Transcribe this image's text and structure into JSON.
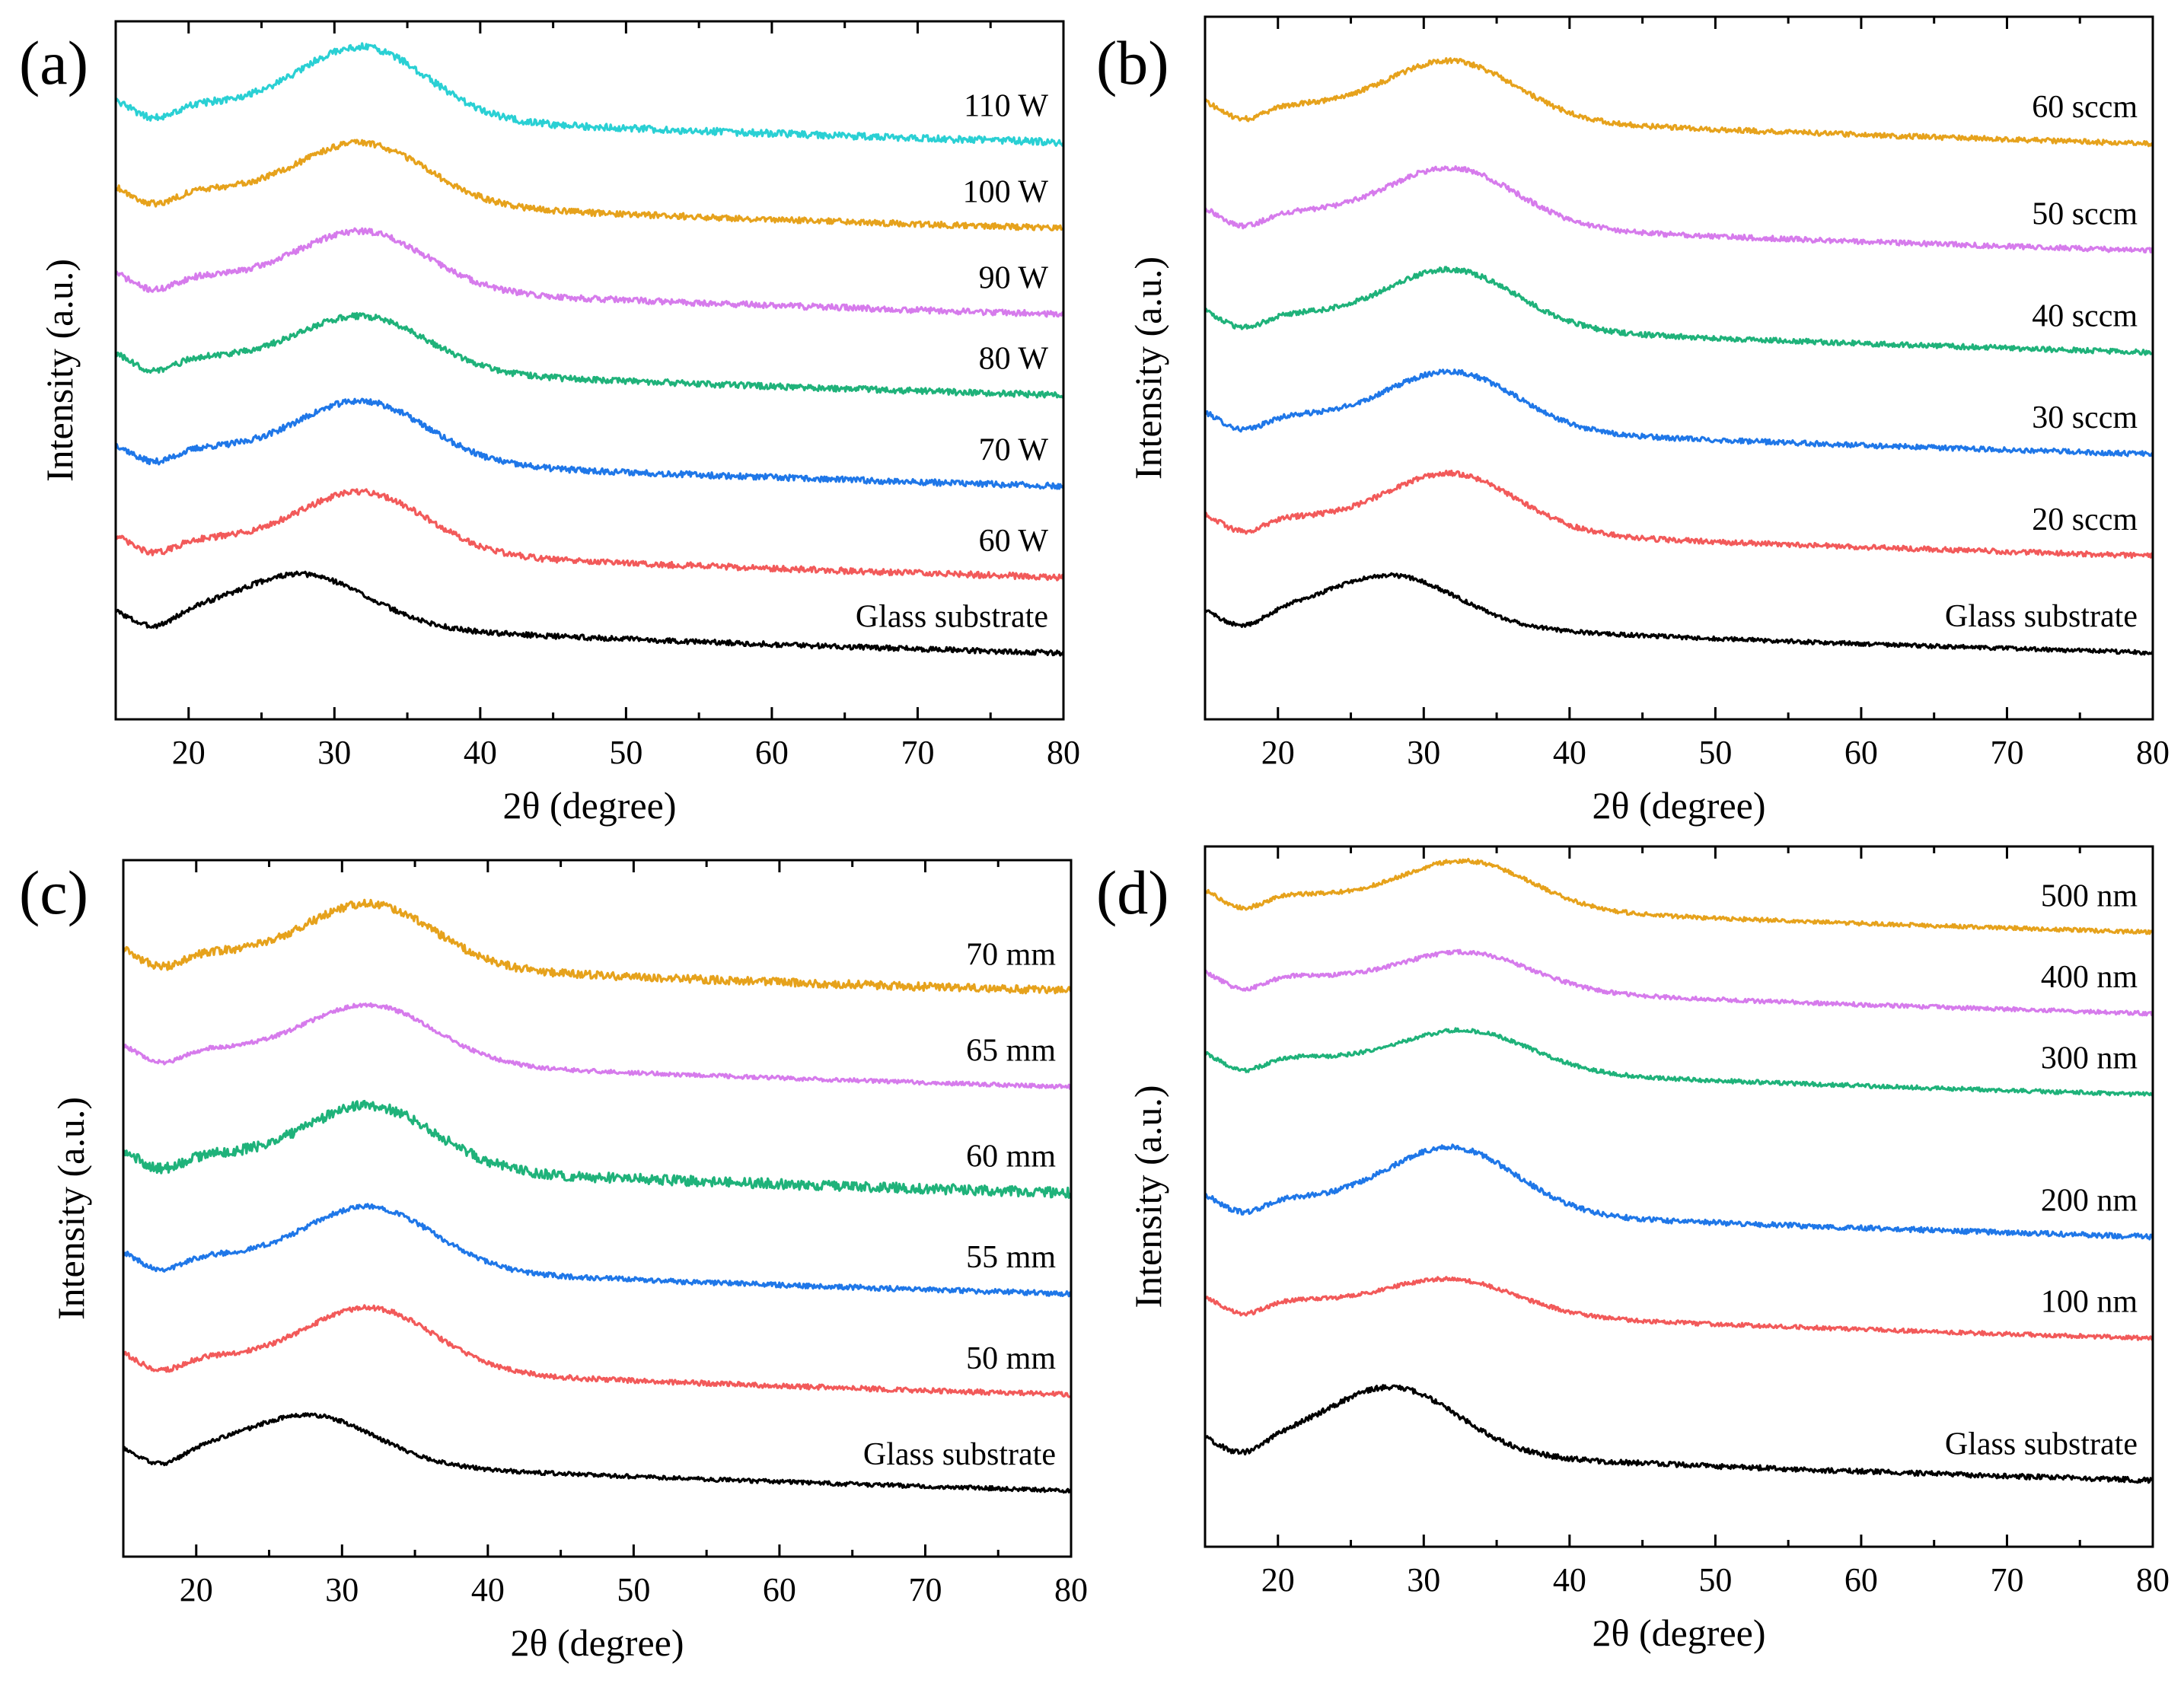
{
  "colors": {
    "black": "#000000",
    "red": "#f25a5a",
    "blue": "#1f77e8",
    "green": "#1fb27a",
    "violet": "#d67bec",
    "orange": "#e6a21c",
    "cyan": "#2ad0d4"
  },
  "chart_data": [
    {
      "type": "line",
      "panel_label": "(a)",
      "xlabel": "2θ (degree)",
      "ylabel": "Intensity (a.u.)",
      "xlim": [
        15,
        80
      ],
      "xticks": [
        20,
        30,
        40,
        50,
        60,
        70,
        80
      ],
      "yticks_shown": false,
      "series": [
        {
          "name": "Glass substrate",
          "color": "black",
          "base": 1.1,
          "peak_x": 28,
          "peak_h": 0.48,
          "noise": 0.025
        },
        {
          "name": "60 W",
          "color": "red",
          "base": 1.85,
          "peak_x": 32,
          "peak_h": 0.58,
          "noise": 0.03
        },
        {
          "name": "70 W",
          "color": "blue",
          "base": 2.75,
          "peak_x": 32,
          "peak_h": 0.58,
          "noise": 0.03
        },
        {
          "name": "80 W",
          "color": "green",
          "base": 3.65,
          "peak_x": 32,
          "peak_h": 0.52,
          "noise": 0.03
        },
        {
          "name": "90 W",
          "color": "violet",
          "base": 4.45,
          "peak_x": 32,
          "peak_h": 0.56,
          "noise": 0.03
        },
        {
          "name": "100 W",
          "color": "orange",
          "base": 5.3,
          "peak_x": 32,
          "peak_h": 0.58,
          "noise": 0.03
        },
        {
          "name": "110 W",
          "color": "cyan",
          "base": 6.15,
          "peak_x": 32,
          "peak_h": 0.68,
          "noise": 0.035
        }
      ]
    },
    {
      "type": "line",
      "panel_label": "(b)",
      "xlabel": "2θ (degree)",
      "ylabel": "Intensity (a.u.)",
      "xlim": [
        15,
        80
      ],
      "xticks": [
        20,
        30,
        40,
        50,
        60,
        70,
        80
      ],
      "yticks_shown": false,
      "series": [
        {
          "name": "Glass substrate",
          "color": "black",
          "base": 1.1,
          "peak_x": 28,
          "peak_h": 0.46,
          "noise": 0.02
        },
        {
          "name": "20 sccm",
          "color": "red",
          "base": 2.05,
          "peak_x": 32,
          "peak_h": 0.55,
          "noise": 0.025
        },
        {
          "name": "30 sccm",
          "color": "blue",
          "base": 3.05,
          "peak_x": 32,
          "peak_h": 0.55,
          "noise": 0.025
        },
        {
          "name": "40 sccm",
          "color": "green",
          "base": 4.05,
          "peak_x": 32,
          "peak_h": 0.55,
          "noise": 0.025
        },
        {
          "name": "50 sccm",
          "color": "violet",
          "base": 5.05,
          "peak_x": 32,
          "peak_h": 0.55,
          "noise": 0.025
        },
        {
          "name": "60 sccm",
          "color": "orange",
          "base": 6.1,
          "peak_x": 32,
          "peak_h": 0.55,
          "noise": 0.025
        }
      ]
    },
    {
      "type": "line",
      "panel_label": "(c)",
      "xlabel": "2θ (degree)",
      "ylabel": "Intensity (a.u.)",
      "xlim": [
        15,
        80
      ],
      "xticks": [
        20,
        30,
        40,
        50,
        60,
        70,
        80
      ],
      "yticks_shown": false,
      "series": [
        {
          "name": "Glass substrate",
          "color": "black",
          "base": 1.1,
          "peak_x": 28,
          "peak_h": 0.45,
          "noise": 0.02
        },
        {
          "name": "50 mm",
          "color": "red",
          "base": 2.05,
          "peak_x": 32,
          "peak_h": 0.6,
          "noise": 0.025
        },
        {
          "name": "55 mm",
          "color": "blue",
          "base": 3.05,
          "peak_x": 32,
          "peak_h": 0.6,
          "noise": 0.025
        },
        {
          "name": "60 mm",
          "color": "green",
          "base": 4.05,
          "peak_x": 32,
          "peak_h": 0.6,
          "noise": 0.05
        },
        {
          "name": "65 mm",
          "color": "violet",
          "base": 5.1,
          "peak_x": 32,
          "peak_h": 0.55,
          "noise": 0.02
        },
        {
          "name": "70 mm",
          "color": "orange",
          "base": 6.05,
          "peak_x": 32,
          "peak_h": 0.6,
          "noise": 0.04
        }
      ]
    },
    {
      "type": "line",
      "panel_label": "(d)",
      "xlabel": "2θ (degree)",
      "ylabel": "Intensity (a.u.)",
      "xlim": [
        15,
        80
      ],
      "xticks": [
        20,
        30,
        40,
        50,
        60,
        70,
        80
      ],
      "yticks_shown": false,
      "series": [
        {
          "name": "Glass substrate",
          "color": "black",
          "base": 1.1,
          "peak_x": 28,
          "peak_h": 0.62,
          "noise": 0.025
        },
        {
          "name": "100 nm",
          "color": "red",
          "base": 2.5,
          "peak_x": 32,
          "peak_h": 0.32,
          "noise": 0.02
        },
        {
          "name": "200 nm",
          "color": "blue",
          "base": 3.5,
          "peak_x": 32,
          "peak_h": 0.62,
          "noise": 0.025
        },
        {
          "name": "300 nm",
          "color": "green",
          "base": 4.9,
          "peak_x": 33,
          "peak_h": 0.38,
          "noise": 0.02
        },
        {
          "name": "400 nm",
          "color": "violet",
          "base": 5.7,
          "peak_x": 33,
          "peak_h": 0.35,
          "noise": 0.02
        },
        {
          "name": "500 nm",
          "color": "orange",
          "base": 6.5,
          "peak_x": 33,
          "peak_h": 0.45,
          "noise": 0.02
        }
      ]
    }
  ]
}
